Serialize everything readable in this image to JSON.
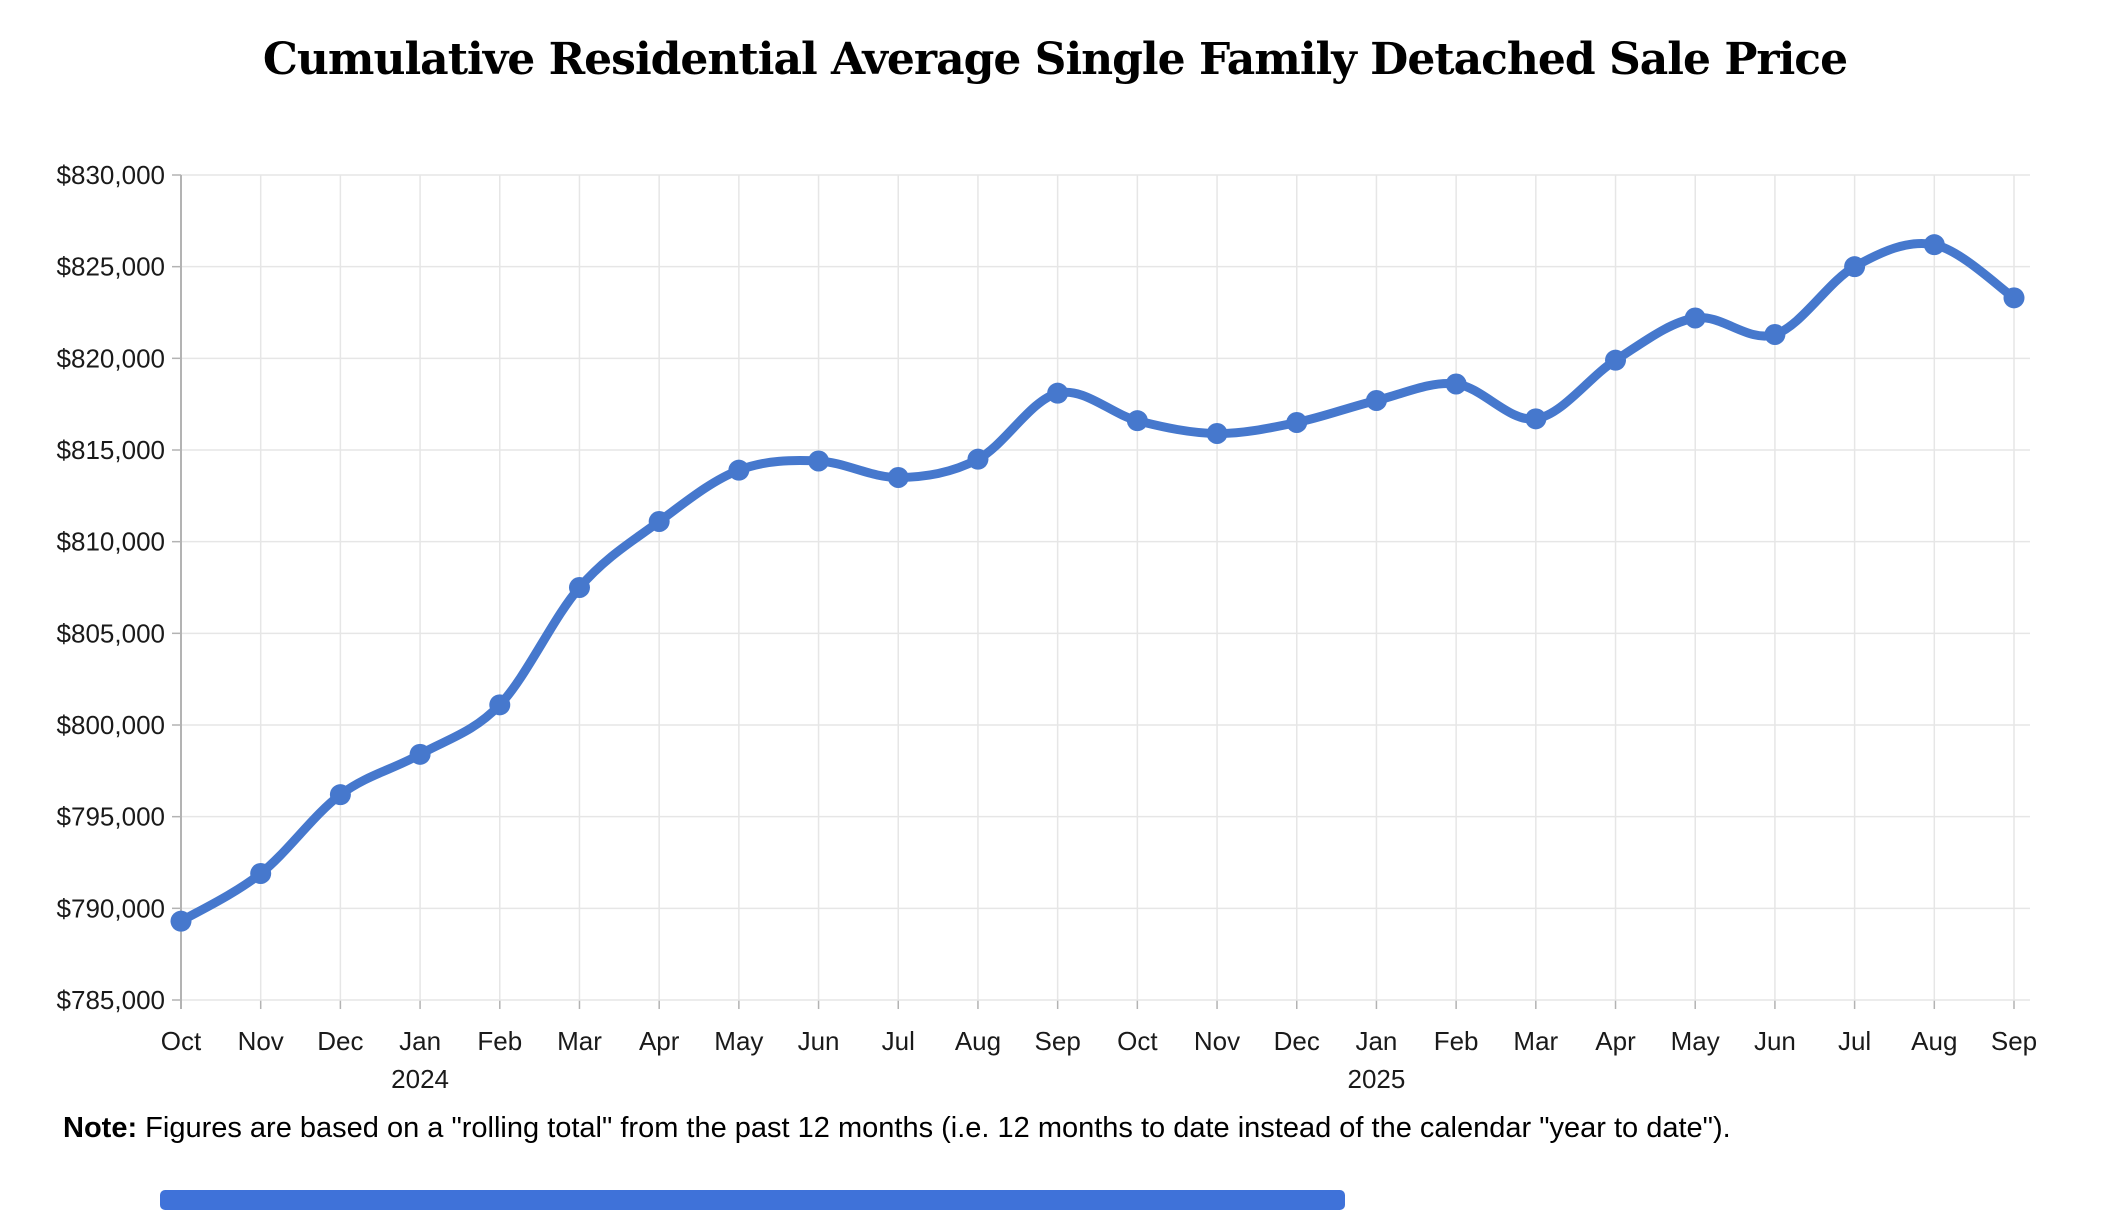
{
  "title": "Cumulative Residential Average Single Family Detached Sale Price",
  "note": {
    "label": "Note:",
    "text": " Figures are based on a \"rolling total\" from the past 12 months (i.e. 12 months to date instead of the calendar \"year to date\")."
  },
  "bottom_bar_color": "#3f72d9",
  "chart_data": {
    "type": "line",
    "title": "Cumulative Residential Average Single Family Detached Sale Price",
    "categories": [
      "Oct",
      "Nov",
      "Dec",
      "Jan",
      "Feb",
      "Mar",
      "Apr",
      "May",
      "Jun",
      "Jul",
      "Aug",
      "Sep",
      "Oct",
      "Nov",
      "Dec",
      "Jan",
      "Feb",
      "Mar",
      "Apr",
      "May",
      "Jun",
      "Jul",
      "Aug",
      "Sep"
    ],
    "year_breaks": [
      {
        "index": 3,
        "label": "2024"
      },
      {
        "index": 15,
        "label": "2025"
      }
    ],
    "values": [
      789300,
      791900,
      796200,
      798400,
      801100,
      807500,
      811100,
      813900,
      814400,
      813500,
      814500,
      818100,
      816600,
      815900,
      816500,
      817700,
      818600,
      816700,
      819900,
      822200,
      821300,
      825000,
      826200,
      823300
    ],
    "xlabel": "",
    "ylabel": "",
    "ylim": [
      785000,
      830000
    ],
    "ytick_step": 5000,
    "ytick_labels": [
      "$785,000",
      "$790,000",
      "$795,000",
      "$800,000",
      "$805,000",
      "$810,000",
      "$815,000",
      "$820,000",
      "$825,000",
      "$830,000"
    ],
    "grid": true,
    "legend_position": "none",
    "line_color": "#4678cd",
    "marker_color": "#4678cd",
    "grid_color": "#e6e6e6",
    "axis_color": "#b3b3b3",
    "axis_text_color": "#1a1a1a"
  }
}
